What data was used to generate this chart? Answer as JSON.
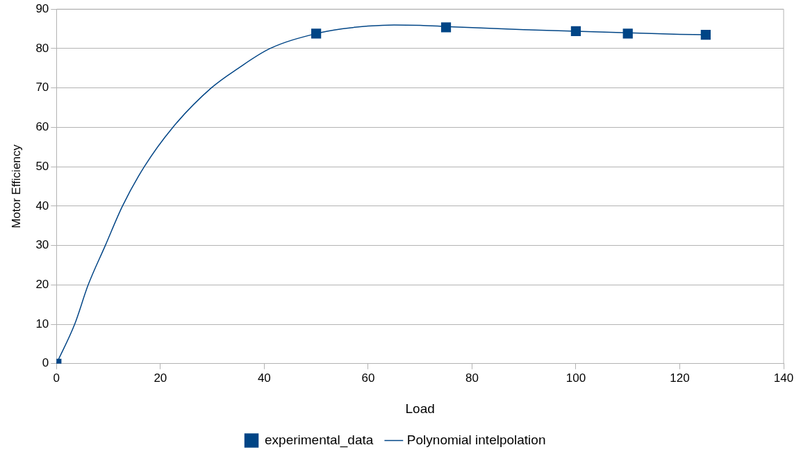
{
  "chart_data": {
    "type": "scatter",
    "xlabel": "Load",
    "ylabel": "Motor Efficiency",
    "xlim": [
      0,
      140
    ],
    "ylim": [
      0,
      90
    ],
    "xticks": [
      0,
      20,
      40,
      60,
      80,
      100,
      120,
      140
    ],
    "yticks": [
      0,
      10,
      20,
      30,
      40,
      50,
      60,
      70,
      80,
      90
    ],
    "grid": "y",
    "legend": "bottom",
    "marker": "square",
    "series": [
      {
        "name": "experimental_data",
        "color": "#004586",
        "x": [
          0,
          50,
          75,
          100,
          110,
          125
        ],
        "values": [
          0,
          83.8,
          85.4,
          84.4,
          83.8,
          83.5
        ]
      },
      {
        "name": "Polynomial intelpolation",
        "type": "line",
        "marker": "none",
        "line_style": "solid",
        "color": "#004586",
        "x": [
          0,
          3.5,
          6.1,
          9.4,
          12.7,
          16.9,
          22.4,
          29.8,
          35,
          41.1,
          50,
          55,
          60,
          65,
          70,
          75,
          80,
          90,
          100,
          110,
          120,
          125
        ],
        "values": [
          0,
          10,
          20,
          30,
          40,
          50,
          60,
          70,
          75,
          80,
          83.8,
          85,
          85.7,
          86,
          85.9,
          85.6,
          85.3,
          84.8,
          84.4,
          84,
          83.6,
          83.5
        ]
      }
    ]
  }
}
